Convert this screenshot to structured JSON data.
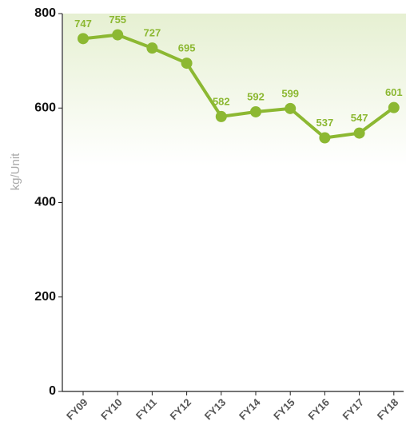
{
  "chart_data": {
    "type": "line",
    "y_label": "kg/Unit",
    "categories": [
      "FY09",
      "FY10",
      "FY11",
      "FY12",
      "FY13",
      "FY14",
      "FY15",
      "FY16",
      "FY17",
      "FY18"
    ],
    "series": [
      {
        "color": "#8cb832",
        "values": [
          747,
          755,
          727,
          695,
          582,
          592,
          599,
          537,
          547,
          601
        ]
      }
    ],
    "ylim": [
      0,
      800
    ],
    "yticks": [
      0,
      200,
      400,
      600,
      800
    ]
  }
}
